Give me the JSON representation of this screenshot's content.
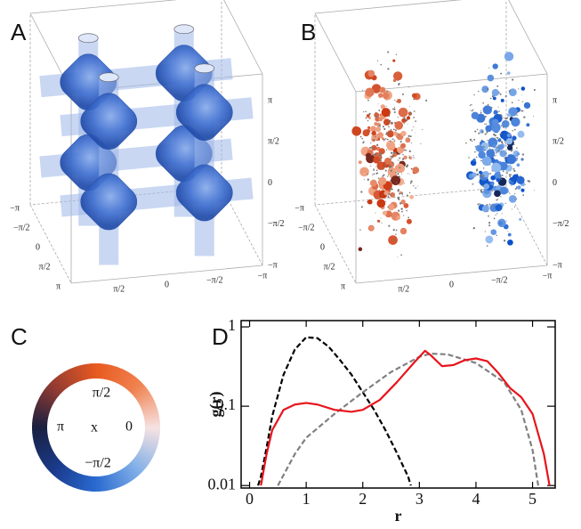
{
  "panel_a": {
    "panel_label": "A",
    "depth_ticks": [
      "−π",
      "−π/2",
      "0",
      "π/2",
      "π"
    ],
    "width_ticks": [
      "π/2",
      "0",
      "−π/2",
      "−π"
    ],
    "height_ticks": [
      "π",
      "π/2",
      "0",
      "−π/2",
      "−π"
    ]
  },
  "panel_b": {
    "panel_label": "B",
    "depth_ticks": [
      "−π",
      "−π/2",
      "0",
      "π/2",
      "π"
    ],
    "width_ticks": [
      "π/2",
      "0",
      "−π/2",
      "−π"
    ],
    "height_ticks": [
      "π",
      "π/2",
      "0",
      "−π/2",
      "−π"
    ]
  },
  "panel_c": {
    "panel_label": "C",
    "top": "π/2",
    "left": "π",
    "center": "x",
    "right": "0",
    "bottom": "−π/2"
  },
  "chart_data": {
    "type": "line",
    "panel_label": "D",
    "xlabel": "r",
    "ylabel": "g(r)",
    "log_y": true,
    "xlim": [
      -0.15,
      5.4
    ],
    "ylim": [
      0.0093,
      1.2
    ],
    "xticks": [
      0,
      1,
      2,
      3,
      4,
      5
    ],
    "yticks": [
      0.01,
      0.1,
      1
    ],
    "series": [
      {
        "color": "#000000",
        "dashed": true,
        "x": [
          0.15,
          0.2,
          0.3,
          0.4,
          0.6,
          0.8,
          1.0,
          1.2,
          1.4,
          1.6,
          1.8,
          2.0,
          2.2,
          2.4,
          2.6,
          2.8,
          2.85
        ],
        "values": [
          0.01,
          0.013,
          0.03,
          0.075,
          0.25,
          0.52,
          0.74,
          0.72,
          0.56,
          0.38,
          0.25,
          0.15,
          0.09,
          0.05,
          0.026,
          0.013,
          0.01
        ]
      },
      {
        "color": "#808080",
        "dashed": true,
        "x": [
          0.5,
          0.8,
          1.0,
          1.5,
          2.0,
          2.5,
          3.0,
          3.2,
          3.5,
          4.0,
          4.5,
          4.8,
          5.0,
          5.1
        ],
        "values": [
          0.01,
          0.025,
          0.04,
          0.08,
          0.15,
          0.27,
          0.42,
          0.46,
          0.45,
          0.35,
          0.2,
          0.09,
          0.028,
          0.01
        ]
      },
      {
        "color": "#e8141c",
        "dashed": false,
        "x": [
          0.2,
          0.3,
          0.4,
          0.6,
          0.8,
          1.0,
          1.2,
          1.5,
          1.8,
          2.0,
          2.3,
          2.6,
          2.9,
          3.1,
          3.2,
          3.4,
          3.6,
          3.8,
          4.0,
          4.2,
          4.4,
          4.6,
          4.8,
          5.0,
          5.2,
          5.3
        ],
        "values": [
          0.01,
          0.025,
          0.05,
          0.09,
          0.105,
          0.11,
          0.105,
          0.09,
          0.085,
          0.09,
          0.12,
          0.2,
          0.35,
          0.5,
          0.44,
          0.32,
          0.33,
          0.38,
          0.4,
          0.37,
          0.26,
          0.17,
          0.13,
          0.08,
          0.025,
          0.01
        ]
      }
    ]
  }
}
